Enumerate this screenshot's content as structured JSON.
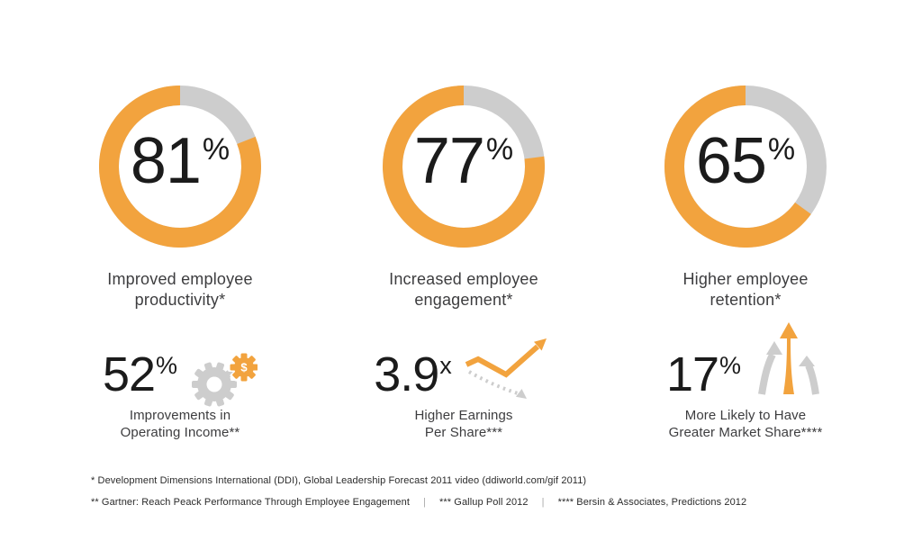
{
  "colors": {
    "accent_orange": "#F2A33E",
    "track_gray": "#CDCDCD",
    "number_text": "#1B1B1B",
    "label_text": "#3D3D3F",
    "footnote_text": "#2B2B2B"
  },
  "chart_data": [
    {
      "type": "pie",
      "variant": "donut",
      "title": "Improved employee productivity*",
      "categories": [
        "achieved",
        "remaining"
      ],
      "values": [
        81,
        19
      ],
      "series_colors": [
        "#F2A33E",
        "#CDCDCD"
      ],
      "donut_percent": 81,
      "center_value": "81",
      "center_suffix": "%",
      "label_line1": "Improved employee",
      "label_line2": "productivity*",
      "sub_value": "52",
      "sub_suffix": "%",
      "sub_icon": "gears-dollar-icon",
      "sub_icon_glyph": "$",
      "sub_label_line1": "Improvements in",
      "sub_label_line2": "Operating Income**"
    },
    {
      "type": "pie",
      "variant": "donut",
      "title": "Increased employee engagement*",
      "categories": [
        "achieved",
        "remaining"
      ],
      "values": [
        77,
        23
      ],
      "series_colors": [
        "#F2A33E",
        "#CDCDCD"
      ],
      "donut_percent": 77,
      "center_value": "77",
      "center_suffix": "%",
      "label_line1": "Increased employee",
      "label_line2": "engagement*",
      "sub_value": "3.9",
      "sub_suffix": "x",
      "sub_icon": "trend-up-arrow-icon",
      "sub_label_line1": "Higher Earnings",
      "sub_label_line2": "Per Share***"
    },
    {
      "type": "pie",
      "variant": "donut",
      "title": "Higher employee retention*",
      "categories": [
        "achieved",
        "remaining"
      ],
      "values": [
        65,
        35
      ],
      "series_colors": [
        "#F2A33E",
        "#CDCDCD"
      ],
      "donut_percent": 65,
      "center_value": "65",
      "center_suffix": "%",
      "label_line1": "Higher employee",
      "label_line2": "retention*",
      "sub_value": "17",
      "sub_suffix": "%",
      "sub_icon": "rising-arrows-icon",
      "sub_label_line1": "More Likely to Have",
      "sub_label_line2": "Greater Market Share****"
    }
  ],
  "footnotes": {
    "line1": "* Development Dimensions International (DDI), Global Leadership Forecast 2011 video (ddiworld.com/gif 2011)",
    "line2_parts": [
      "** Gartner: Reach Peack Performance Through Employee Engagement",
      "*** Gallup Poll 2012",
      "**** Bersin & Associates, Predictions 2012"
    ],
    "divider": "|"
  }
}
